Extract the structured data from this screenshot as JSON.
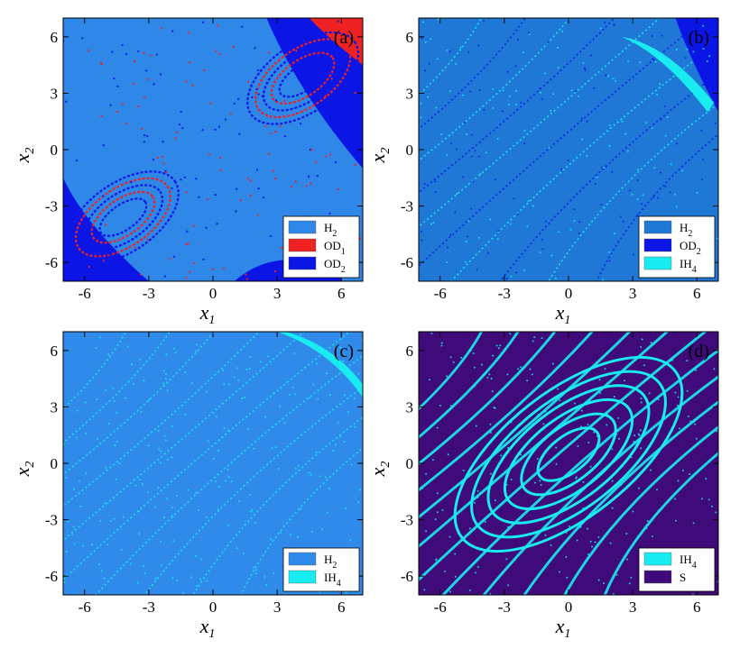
{
  "chart_data": [
    {
      "type": "heatmap",
      "panel_label": "(a)",
      "xlabel": "x",
      "xlabel_sub": "1",
      "ylabel": "x",
      "ylabel_sub": "2",
      "xlim": [
        -7,
        7
      ],
      "ylim": [
        -7,
        7
      ],
      "xticks": [
        -6,
        -3,
        0,
        3,
        6
      ],
      "yticks": [
        6,
        3,
        0,
        -3,
        -6
      ],
      "background": "#2f87e8",
      "legend_position": "bottom-right",
      "legend": [
        {
          "base": "H",
          "sub": "2",
          "color": "#2f87e8"
        },
        {
          "base": "OD",
          "sub": "1",
          "color": "#ee2222"
        },
        {
          "base": "OD",
          "sub": "2",
          "color": "#0b16e6"
        }
      ]
    },
    {
      "type": "heatmap",
      "panel_label": "(b)",
      "xlabel": "x",
      "xlabel_sub": "1",
      "ylabel": "x",
      "ylabel_sub": "2",
      "xlim": [
        -7,
        7
      ],
      "ylim": [
        -7,
        7
      ],
      "xticks": [
        -6,
        -3,
        0,
        3,
        6
      ],
      "yticks": [
        6,
        3,
        0,
        -3,
        -6
      ],
      "background": "#1f78d6",
      "legend_position": "bottom-right",
      "legend": [
        {
          "base": "H",
          "sub": "2",
          "color": "#1f78d6"
        },
        {
          "base": "OD",
          "sub": "2",
          "color": "#0b16e6"
        },
        {
          "base": "IH",
          "sub": "4",
          "color": "#19ecf0"
        }
      ]
    },
    {
      "type": "heatmap",
      "panel_label": "(c)",
      "xlabel": "x",
      "xlabel_sub": "1",
      "ylabel": "x",
      "ylabel_sub": "2",
      "xlim": [
        -7,
        7
      ],
      "ylim": [
        -7,
        7
      ],
      "xticks": [
        -6,
        -3,
        0,
        3,
        6
      ],
      "yticks": [
        6,
        3,
        0,
        -3,
        -6
      ],
      "background": "#2f8aea",
      "legend_position": "bottom-right",
      "legend": [
        {
          "base": "H",
          "sub": "2",
          "color": "#2f8aea"
        },
        {
          "base": "IH",
          "sub": "4",
          "color": "#19ecf0"
        }
      ]
    },
    {
      "type": "heatmap",
      "panel_label": "(d)",
      "xlabel": "x",
      "xlabel_sub": "1",
      "ylabel": "x",
      "ylabel_sub": "2",
      "xlim": [
        -7,
        7
      ],
      "ylim": [
        -7,
        7
      ],
      "xticks": [
        -6,
        -3,
        0,
        3,
        6
      ],
      "yticks": [
        6,
        3,
        0,
        -3,
        -6
      ],
      "background": "#3f0a7a",
      "legend_position": "bottom-right",
      "legend": [
        {
          "base": "IH",
          "sub": "4",
          "color": "#19ecf0"
        },
        {
          "base": "S",
          "sub": "",
          "color": "#3f0a7a"
        }
      ]
    }
  ]
}
